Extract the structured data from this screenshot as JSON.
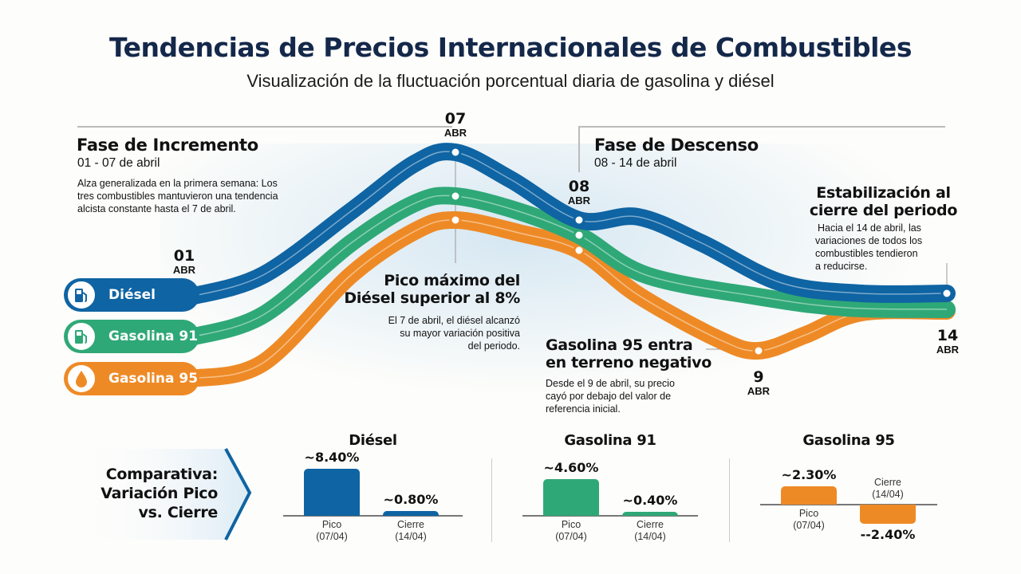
{
  "header": {
    "title": "Tendencias de Precios Internacionales de Combustibles",
    "subtitle": "Visualización de la fluctuación porcentual diaria de gasolina y diésel"
  },
  "phases": [
    {
      "title": "Fase de Incremento",
      "range": "01 - 07 de abril",
      "desc": [
        "Alza generalizada en la primera semana: Los",
        "tres combustibles mantuvieron una tendencia",
        "alcista constante hasta el 7 de abril."
      ]
    },
    {
      "title": "Fase de Descenso",
      "range": "08 - 14 de abril"
    }
  ],
  "dates": [
    {
      "day": "01",
      "month": "ABR"
    },
    {
      "day": "07",
      "month": "ABR"
    },
    {
      "day": "08",
      "month": "ABR"
    },
    {
      "day": "9",
      "month": "ABR"
    },
    {
      "day": "14",
      "month": "ABR"
    }
  ],
  "annotations": [
    {
      "title": [
        "Pico máximo del",
        "Diésel superior al 8%"
      ],
      "desc": [
        "El 7 de abril, el diésel alcanzó",
        "su mayor variación positiva",
        "del periodo."
      ]
    },
    {
      "title": [
        "Gasolina 95 entra",
        "en terreno negativo"
      ],
      "desc": [
        "Desde el 9 de abril, su precio",
        "cayó por debajo del valor de",
        "referencia inicial."
      ]
    },
    {
      "title": [
        "Estabilización al",
        "cierre del periodo"
      ],
      "desc": [
        "Hacia el 14 de abril, las",
        "variaciones de todos los",
        "combustibles tendieron",
        "a reducirse."
      ]
    }
  ],
  "legend": [
    {
      "name": "Diésel",
      "icon": "fuel-pump-icon",
      "color": "#0f64a3"
    },
    {
      "name": "Gasolina 91",
      "icon": "fuel-pump-icon",
      "color": "#2fa877"
    },
    {
      "name": "Gasolina 95",
      "icon": "droplet-icon",
      "color": "#ee8a26"
    }
  ],
  "comparison": {
    "label": [
      "Comparativa:",
      "Variación Pico",
      "vs. Cierre"
    ]
  },
  "chart_data": [
    {
      "type": "line",
      "x": [
        "01 ABR",
        "07 ABR",
        "08 ABR",
        "9 ABR",
        "14 ABR"
      ],
      "series": [
        {
          "name": "Diésel",
          "color": "#0f64a3",
          "values": [
            0,
            8.4,
            null,
            null,
            0.8
          ]
        },
        {
          "name": "Gasolina 91",
          "color": "#2fa877",
          "values": [
            null,
            4.6,
            null,
            null,
            0.4
          ]
        },
        {
          "name": "Gasolina 95",
          "color": "#ee8a26",
          "values": [
            null,
            2.3,
            null,
            -2.4,
            null
          ]
        }
      ]
    },
    {
      "type": "bar",
      "title": "Diésel",
      "color": "#0f64a3",
      "categories": [
        [
          "Pico",
          "(07/04)"
        ],
        [
          "Cierre",
          "(14/04)"
        ]
      ],
      "values": [
        8.4,
        0.8
      ],
      "labels": [
        "~8.40%",
        "~0.80%"
      ]
    },
    {
      "type": "bar",
      "title": "Gasolina 91",
      "color": "#2fa877",
      "categories": [
        [
          "Pico",
          "(07/04)"
        ],
        [
          "Cierre",
          "(14/04)"
        ]
      ],
      "values": [
        4.6,
        0.4
      ],
      "labels": [
        "~4.60%",
        "~0.40%"
      ]
    },
    {
      "type": "bar",
      "title": "Gasolina 95",
      "color": "#ee8a26",
      "categories": [
        [
          "Pico",
          "(07/04)"
        ],
        [
          "Cierre",
          "(14/04)"
        ]
      ],
      "values": [
        2.3,
        -2.4
      ],
      "labels": [
        "~2.30%",
        "--2.40%"
      ]
    }
  ]
}
